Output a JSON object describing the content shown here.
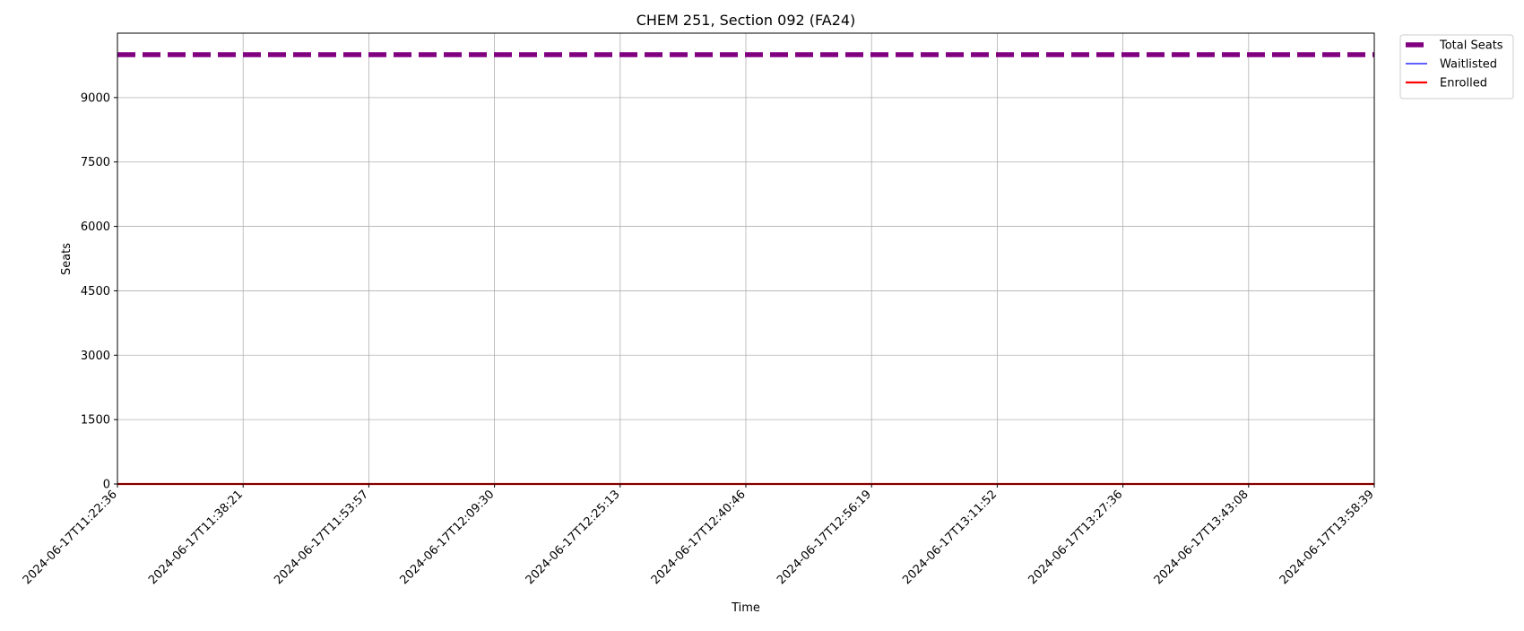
{
  "chart_data": {
    "type": "line",
    "title": "CHEM 251, Section 092 (FA24)",
    "xlabel": "Time",
    "ylabel": "Seats",
    "x_ticks": [
      "2024-06-17T11:22:36",
      "2024-06-17T11:38:21",
      "2024-06-17T11:53:57",
      "2024-06-17T12:09:30",
      "2024-06-17T12:25:13",
      "2024-06-17T12:40:46",
      "2024-06-17T12:56:19",
      "2024-06-17T13:11:52",
      "2024-06-17T13:27:36",
      "2024-06-17T13:43:08",
      "2024-06-17T13:58:39"
    ],
    "y_ticks": [
      0,
      1500,
      3000,
      4500,
      6000,
      7500,
      9000
    ],
    "ylim": [
      0,
      10500
    ],
    "grid": true,
    "legend_position": "outside-top-right",
    "series": [
      {
        "name": "Total Seats",
        "color": "#800080",
        "style": "dashed",
        "values": [
          9999,
          9999,
          9999,
          9999,
          9999,
          9999,
          9999,
          9999,
          9999,
          9999,
          9999
        ]
      },
      {
        "name": "Waitlisted",
        "color": "#0000ff",
        "style": "solid",
        "values": [
          0,
          0,
          0,
          0,
          0,
          0,
          0,
          0,
          0,
          0,
          0
        ]
      },
      {
        "name": "Enrolled",
        "color": "#ff0000",
        "style": "solid",
        "values": [
          0,
          0,
          0,
          0,
          0,
          0,
          0,
          0,
          0,
          0,
          0
        ]
      }
    ]
  }
}
